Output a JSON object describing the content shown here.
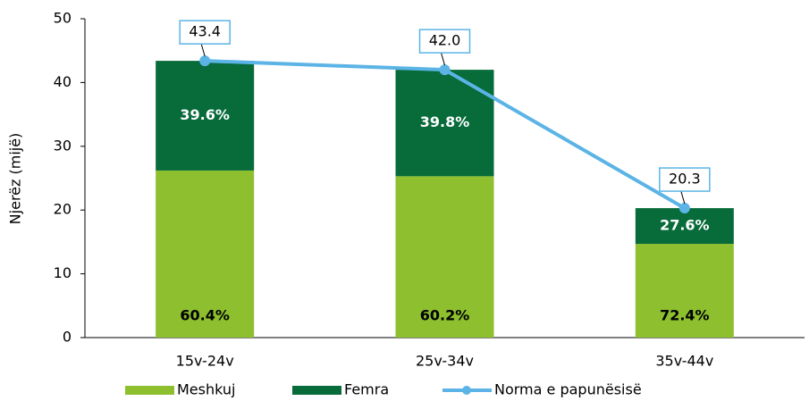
{
  "chart_data": {
    "type": "stacked-bar-line",
    "y_label": "Njerëz (mijë)",
    "categories": [
      "15v-24v",
      "25v-34v",
      "35v-44v"
    ],
    "series": [
      {
        "name": "Meshkuj",
        "color": "#8dbf2e",
        "values": [
          26.2,
          25.3,
          14.7
        ],
        "percent_labels": [
          "60.4%",
          "60.2%",
          "72.4%"
        ]
      },
      {
        "name": "Femra",
        "color": "#076b3a",
        "values": [
          17.2,
          16.7,
          5.6
        ],
        "percent_labels": [
          "39.6%",
          "39.8%",
          "27.6%"
        ]
      }
    ],
    "line": {
      "name": "Norma e papunësisë",
      "color": "#5bb4e5",
      "values": [
        43.4,
        42.0,
        20.3
      ],
      "value_labels": [
        "43.4",
        "42.0",
        "20.3"
      ]
    },
    "ylim": [
      0,
      50
    ],
    "yticks": [
      0,
      10,
      20,
      30,
      40,
      50
    ],
    "legend": "bottom"
  }
}
